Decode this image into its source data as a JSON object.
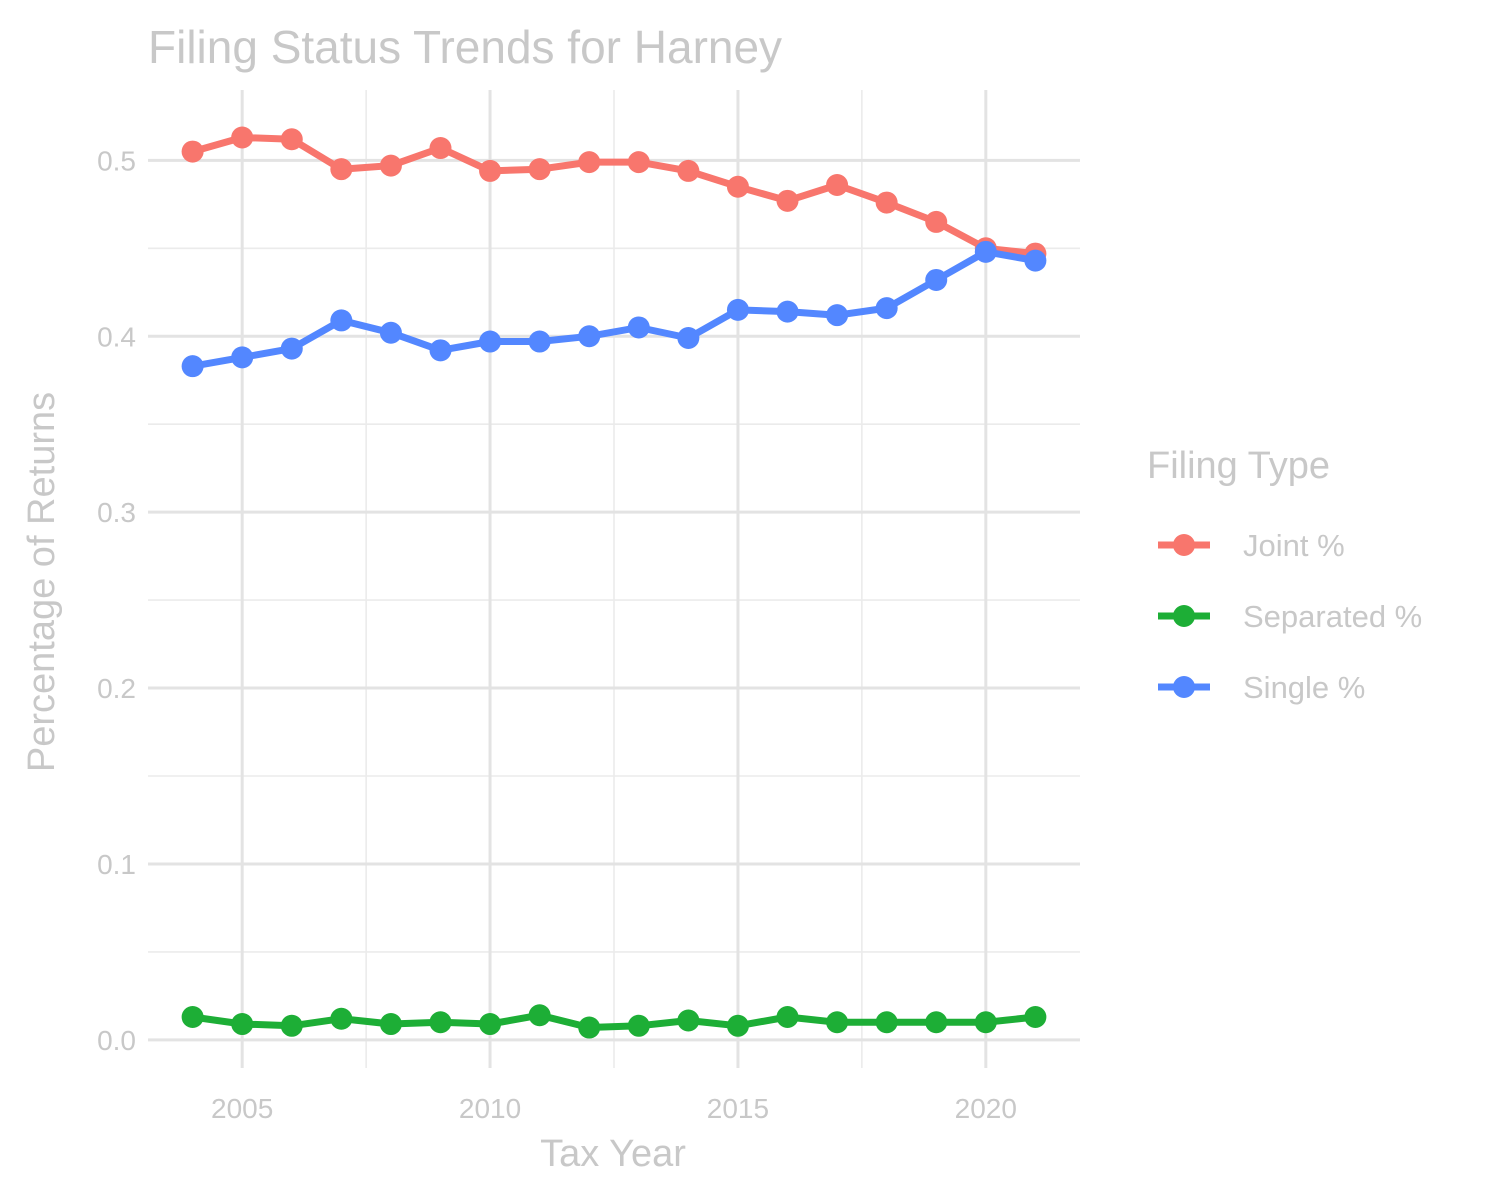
{
  "chart_data": {
    "type": "line",
    "title": "Filing Status Trends for Harney",
    "xlabel": "Tax Year",
    "ylabel": "Percentage of Returns",
    "x": [
      2004,
      2005,
      2006,
      2007,
      2008,
      2009,
      2010,
      2011,
      2012,
      2013,
      2014,
      2015,
      2016,
      2017,
      2018,
      2019,
      2020,
      2021
    ],
    "xlim": [
      2003.1,
      2021.9
    ],
    "ylim": [
      -0.016,
      0.54
    ],
    "x_ticks": [
      2005,
      2010,
      2015,
      2020
    ],
    "x_tick_labels": [
      "2005",
      "2010",
      "2015",
      "2020"
    ],
    "y_ticks": [
      0.0,
      0.1,
      0.2,
      0.3,
      0.4,
      0.5
    ],
    "y_tick_labels": [
      "0.0",
      "0.1",
      "0.2",
      "0.3",
      "0.4",
      "0.5"
    ],
    "grid": true,
    "legend": {
      "title": "Filing Type",
      "placement": "right"
    },
    "series": [
      {
        "name": "Joint %",
        "color": "#F8766D",
        "values": [
          0.505,
          0.513,
          0.512,
          0.495,
          0.497,
          0.507,
          0.494,
          0.495,
          0.499,
          0.499,
          0.494,
          0.485,
          0.477,
          0.486,
          0.476,
          0.465,
          0.45,
          0.447
        ]
      },
      {
        "name": "Separated %",
        "color": "#1DAE36",
        "values": [
          0.013,
          0.009,
          0.008,
          0.012,
          0.009,
          0.01,
          0.009,
          0.014,
          0.007,
          0.008,
          0.011,
          0.008,
          0.013,
          0.01,
          0.01,
          0.01,
          0.01,
          0.013
        ]
      },
      {
        "name": "Single %",
        "color": "#5387FF",
        "values": [
          0.383,
          0.388,
          0.393,
          0.409,
          0.402,
          0.392,
          0.397,
          0.397,
          0.4,
          0.405,
          0.399,
          0.415,
          0.414,
          0.412,
          0.416,
          0.432,
          0.448,
          0.443
        ]
      }
    ]
  }
}
